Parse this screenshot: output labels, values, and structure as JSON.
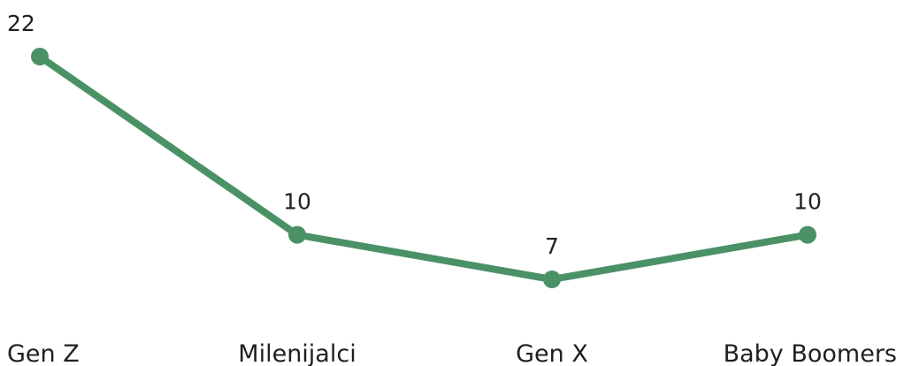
{
  "chart_data": {
    "type": "line",
    "categories": [
      "Gen Z",
      "Milenijalci",
      "Gen X",
      "Baby Boomers"
    ],
    "values": [
      22,
      10,
      7,
      10
    ],
    "data_labels": [
      "22",
      "10",
      "7",
      "10"
    ],
    "title": "",
    "xlabel": "",
    "ylabel": "",
    "grid": false,
    "legend": "none",
    "colors": {
      "line": "#4a9166",
      "text": "#1f1f1f",
      "background": "#ffffff"
    }
  }
}
